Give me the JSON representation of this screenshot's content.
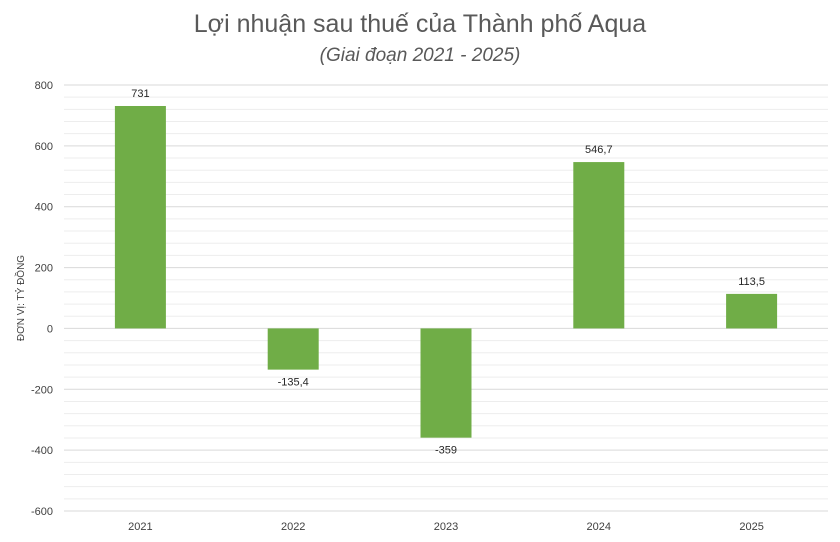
{
  "chart_data": {
    "type": "bar",
    "title": "Lợi nhuận sau thuế của Thành phố Aqua",
    "subtitle": "(Giai đoạn 2021 - 2025)",
    "xlabel": "",
    "ylabel": "ĐƠN VỊ: TỶ ĐỒNG",
    "categories": [
      "2021",
      "2022",
      "2023",
      "2024",
      "2025"
    ],
    "values": [
      731,
      -135.4,
      -359,
      546.7,
      113.5
    ],
    "value_labels": [
      "731",
      "-135,4",
      "-359",
      "546,7",
      "113,5"
    ],
    "ylim": [
      -600,
      800
    ],
    "yticks": [
      800,
      600,
      400,
      200,
      0,
      -200,
      -400,
      -600
    ],
    "ytick_labels": [
      "800",
      "600",
      "400",
      "200",
      "0",
      "-200",
      "-400",
      "-600"
    ],
    "minor_grid_step": 40,
    "grid": true,
    "legend": "none",
    "bar_color": "#70ad47"
  }
}
